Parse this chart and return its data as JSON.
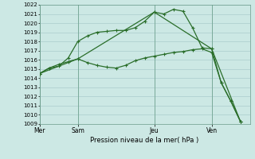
{
  "bg_color": "#cce8e4",
  "grid_color": "#aacccc",
  "line_color": "#2a6e2a",
  "ylabel_min": 1009,
  "ylabel_max": 1022,
  "title": "Pression niveau de la mer( hPa )",
  "day_labels": [
    "Mer",
    "Sam",
    "Jeu",
    "Ven"
  ],
  "day_positions": [
    0,
    4,
    12,
    18
  ],
  "xlim_max": 22,
  "line1_x": [
    0,
    1,
    2,
    3,
    4,
    5,
    6,
    7,
    8,
    9,
    10,
    11,
    12,
    13,
    14,
    15,
    16,
    17,
    18,
    19,
    20,
    21
  ],
  "line1_y": [
    1014.5,
    1015.1,
    1015.3,
    1016.2,
    1018.0,
    1018.6,
    1019.0,
    1019.1,
    1019.2,
    1019.2,
    1019.5,
    1020.2,
    1021.2,
    1021.0,
    1021.5,
    1021.3,
    1019.5,
    1017.3,
    1017.2,
    1013.5,
    1011.5,
    1009.3
  ],
  "line2_x": [
    0,
    1,
    2,
    3,
    4,
    5,
    6,
    7,
    8,
    9,
    10,
    11,
    12,
    13,
    14,
    15,
    16,
    17,
    18,
    19,
    20,
    21
  ],
  "line2_y": [
    1014.5,
    1015.1,
    1015.5,
    1015.8,
    1016.1,
    1015.7,
    1015.4,
    1015.2,
    1015.1,
    1015.4,
    1015.9,
    1016.2,
    1016.4,
    1016.6,
    1016.8,
    1016.9,
    1017.1,
    1017.2,
    1016.8,
    1013.5,
    1011.5,
    1009.3
  ],
  "line3_x": [
    0,
    4,
    12,
    18,
    21
  ],
  "line3_y": [
    1014.5,
    1016.1,
    1021.2,
    1017.2,
    1009.3
  ]
}
